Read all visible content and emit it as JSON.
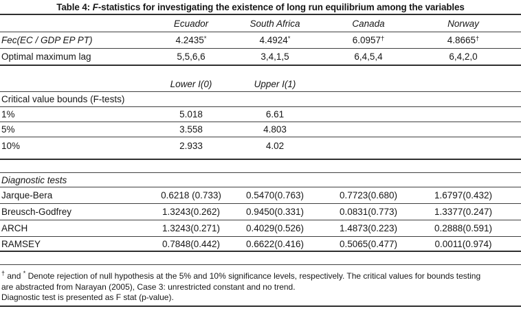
{
  "title": {
    "prefix": "Table 4: ",
    "emph": "F",
    "suffix": "-statistics for investigating the existence of long run equilibrium among the variables"
  },
  "columns": [
    "Ecuador",
    "South Africa",
    "Canada",
    "Norway"
  ],
  "fstat": {
    "label": "Fec(EC / GDP EP PT)",
    "values": [
      {
        "num": "4.2435",
        "mark": "*"
      },
      {
        "num": "4.4924",
        "mark": "*"
      },
      {
        "num": "6.0957",
        "mark": "†"
      },
      {
        "num": "4.8665",
        "mark": "†"
      }
    ]
  },
  "lag": {
    "label": "Optimal maximum lag",
    "values": [
      "5,5,6,6",
      "3,4,1,5",
      "6,4,5,4",
      "6,4,2,0"
    ]
  },
  "bounds": {
    "lower_header": "Lower I(0)",
    "upper_header": "Upper I(1)",
    "section_label": "Critical value bounds (F-tests)",
    "rows": [
      {
        "label": "1%",
        "lower": "5.018",
        "upper": "6.61"
      },
      {
        "label": "5%",
        "lower": "3.558",
        "upper": "4.803"
      },
      {
        "label": "10%",
        "lower": "2.933",
        "upper": "4.02"
      }
    ]
  },
  "diagnostics": {
    "section_label": "Diagnostic tests",
    "rows": [
      {
        "label": "Jarque-Bera",
        "values": [
          "0.6218 (0.733)",
          "0.5470(0.763)",
          "0.7723(0.680)",
          "1.6797(0.432)"
        ]
      },
      {
        "label": "Breusch-Godfrey",
        "values": [
          "1.3243(0.262)",
          "0.9450(0.331)",
          "0.0831(0.773)",
          "1.3377(0.247)"
        ]
      },
      {
        "label": "ARCH",
        "values": [
          "1.3243(0.271)",
          "0.4029(0.526)",
          "1.4873(0.223)",
          "0.2888(0.591)"
        ]
      },
      {
        "label": "RAMSEY",
        "values": [
          "0.7848(0.442)",
          "0.6622(0.416)",
          "0.5065(0.477)",
          "0.0011(0.974)"
        ]
      }
    ]
  },
  "footnotes": {
    "line1_sup_a": "†",
    "line1_mid": " and ",
    "line1_sup_b": "*",
    "line1_text": " Denote rejection of null hypothesis at the 5% and 10% significance levels, respectively. The critical values for bounds testing",
    "line2": "are abstracted from Narayan (2005), Case 3: unrestricted constant and no trend.",
    "line3": "Diagnostic test is presented as F stat (p-value)."
  },
  "colors": {
    "background": "#ffffff",
    "text": "#161616",
    "rule": "#3f3f3f"
  }
}
